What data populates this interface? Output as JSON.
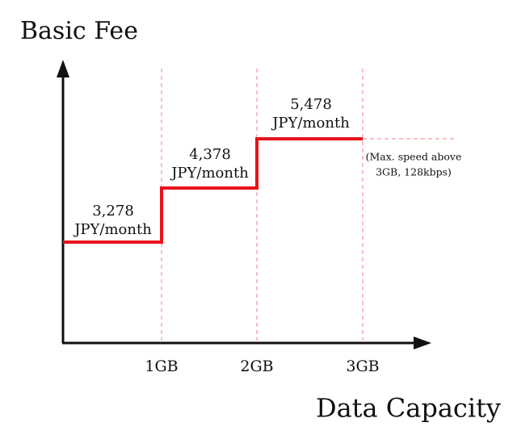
{
  "y_axis_label": "Basic Fee",
  "x_axis_label": "Data Capacity",
  "x_ticks": [
    "1GB",
    "2GB",
    "3GB"
  ],
  "steps": [
    {
      "fee": "3,278",
      "unit": "JPY/month"
    },
    {
      "fee": "4,378",
      "unit": "JPY/month"
    },
    {
      "fee": "5,478",
      "unit": "JPY/month"
    }
  ],
  "note": [
    "(Max. speed above",
    "3GB, 128kbps)"
  ]
}
